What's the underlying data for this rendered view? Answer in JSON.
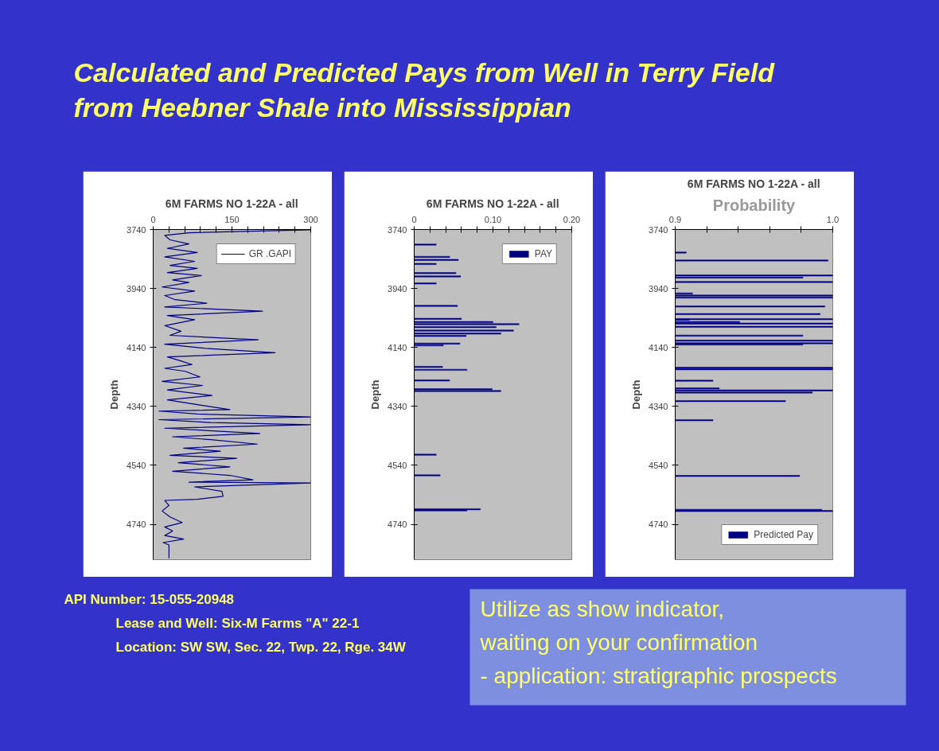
{
  "chart_data": [
    {
      "type": "other",
      "title": "Calculated and Predicted Pays from Well in Terry Field from Heebner Shale into Mississippian",
      "annotations": [
        "API Number: 15-055-20948",
        "Lease and Well: Six-M Farms \"A\" 22-1",
        "Location: SW SW, Sec. 22, Twp. 22, Rge. 34W",
        "Utilize as show indicator,",
        "waiting on your confirmation",
        "- application: stratigraphic prospects"
      ]
    },
    {
      "type": "line",
      "orientation": "horizontal",
      "title": "6M FARMS NO 1-22A - all",
      "ylabel": "Depth",
      "legend": "top right",
      "xlim": [
        0,
        300
      ],
      "xticks": [
        0,
        {
          "value": 30,
          "label": null
        },
        {
          "value": 60,
          "label": null
        },
        {
          "value": 90,
          "label": null
        },
        {
          "value": 120,
          "label": null
        },
        150,
        {
          "value": 180,
          "label": null
        },
        {
          "value": 210,
          "label": null
        },
        {
          "value": 240,
          "label": null
        },
        {
          "value": 270,
          "label": null
        },
        300
      ],
      "ylim": [
        4860,
        3740
      ],
      "yticks": [
        3740,
        3940,
        4140,
        4340,
        4540,
        4740
      ],
      "x": [
        3741,
        3751,
        3760,
        3775,
        3789,
        3804,
        3818,
        3833,
        3848,
        3862,
        3872,
        3886,
        3896,
        3911,
        3920,
        3935,
        3949,
        3964,
        3978,
        3990,
        4003,
        4017,
        4032,
        4046,
        4066,
        4085,
        4099,
        4114,
        4129,
        4143,
        4158,
        4172,
        4187,
        4198,
        4211,
        4221,
        4240,
        4255,
        4269,
        4284,
        4303,
        4318,
        4337,
        4351,
        4356,
        4366,
        4376,
        4385,
        4395,
        4402,
        4414,
        4432,
        4443,
        4453,
        4468,
        4482,
        4492,
        4506,
        4516,
        4531,
        4545,
        4560,
        4574,
        4589,
        4597,
        4600,
        4613,
        4628,
        4645,
        4655,
        4659,
        4676,
        4695,
        4715,
        4734,
        4749,
        4763,
        4778,
        4790,
        4802,
        4810,
        4855
      ],
      "series": [
        {
          "name": "GR .GAPI",
          "color": "#000080",
          "values": [
            300,
            68,
            22,
            32,
            68,
            27,
            84,
            22,
            79,
            32,
            84,
            27,
            92,
            37,
            68,
            17,
            79,
            22,
            42,
            102,
            22,
            208,
            27,
            79,
            22,
            53,
            32,
            200,
            22,
            99,
            232,
            27,
            55,
            74,
            22,
            61,
            89,
            17,
            94,
            27,
            112,
            27,
            94,
            146,
            11,
            84,
            300,
            11,
            110,
            300,
            22,
            203,
            37,
            110,
            198,
            58,
            128,
            32,
            159,
            48,
            146,
            37,
            146,
            190,
            68,
            300,
            79,
            131,
            133,
            84,
            22,
            30,
            17,
            32,
            55,
            22,
            37,
            22,
            58,
            19,
            30,
            30
          ]
        }
      ]
    },
    {
      "type": "bar",
      "orientation": "horizontal",
      "title": "6M FARMS NO 1-22A - all",
      "ylabel": "Depth",
      "legend": "top right",
      "xlim": [
        0,
        0.2
      ],
      "xticks": [
        0,
        {
          "value": 0.02,
          "label": null
        },
        {
          "value": 0.04,
          "label": null
        },
        {
          "value": 0.06,
          "label": null
        },
        {
          "value": 0.08,
          "label": null
        },
        {
          "value": 0.1,
          "label": "0.10"
        },
        {
          "value": 0.12,
          "label": null
        },
        {
          "value": 0.14,
          "label": null
        },
        {
          "value": 0.16,
          "label": null
        },
        {
          "value": 0.18,
          "label": null
        },
        {
          "value": 0.2,
          "label": "0.20"
        }
      ],
      "ylim": [
        4860,
        3740
      ],
      "yticks": [
        3740,
        3940,
        4140,
        4340,
        4540,
        4740
      ],
      "x": [
        3791,
        3833,
        3843,
        3857,
        3888,
        3899,
        3923,
        3999,
        4043,
        4054,
        4061,
        4071,
        4083,
        4093,
        4101,
        4127,
        4133,
        4206,
        4216,
        4252,
        4282,
        4288,
        4504,
        4574,
        4689,
        4693
      ],
      "series": [
        {
          "name": "PAY",
          "color": "#000080",
          "values": [
            0.028,
            0.045,
            0.056,
            0.028,
            0.053,
            0.059,
            0.028,
            0.055,
            0.06,
            0.1,
            0.133,
            0.104,
            0.126,
            0.11,
            0.066,
            0.058,
            0.037,
            0.036,
            0.067,
            0.045,
            0.099,
            0.11,
            0.028,
            0.033,
            0.084,
            0.067
          ]
        }
      ]
    },
    {
      "type": "bar",
      "orientation": "horizontal",
      "title": "6M FARMS NO 1-22A - all",
      "ylabel": "Depth",
      "xlabel": "Probability",
      "legend": "bottom right",
      "xlim": [
        0.9,
        1.0
      ],
      "xticks": [
        0.9,
        {
          "value": 0.92,
          "label": null
        },
        {
          "value": 0.94,
          "label": null
        },
        {
          "value": 0.96,
          "label": null
        },
        {
          "value": 0.98,
          "label": null
        },
        {
          "value": 1.0,
          "label": "1.0"
        }
      ],
      "ylim": [
        4860,
        3740
      ],
      "yticks": [
        3740,
        3940,
        4140,
        4340,
        4540,
        4740
      ],
      "x": [
        3818,
        3845,
        3896,
        3903,
        3918,
        3957,
        3964,
        3971,
        4001,
        4027,
        4044,
        4046,
        4054,
        4059,
        4070,
        4100,
        4117,
        4126,
        4130,
        4209,
        4214,
        4253,
        4279,
        4286,
        4293,
        4322,
        4387,
        4576,
        4691,
        4695
      ],
      "series": [
        {
          "name": "Predicted Pay",
          "color": "#000080",
          "values": [
            0.907,
            0.997,
            1.0,
            0.981,
            1.0,
            0.911,
            1.0,
            1.0,
            0.995,
            0.992,
            1.0,
            0.909,
            0.941,
            1.0,
            1.0,
            0.981,
            1.0,
            1.0,
            0.981,
            1.0,
            1.0,
            0.924,
            0.928,
            1.0,
            0.987,
            0.97,
            0.924,
            0.979,
            0.993,
            1.0
          ]
        }
      ]
    }
  ]
}
